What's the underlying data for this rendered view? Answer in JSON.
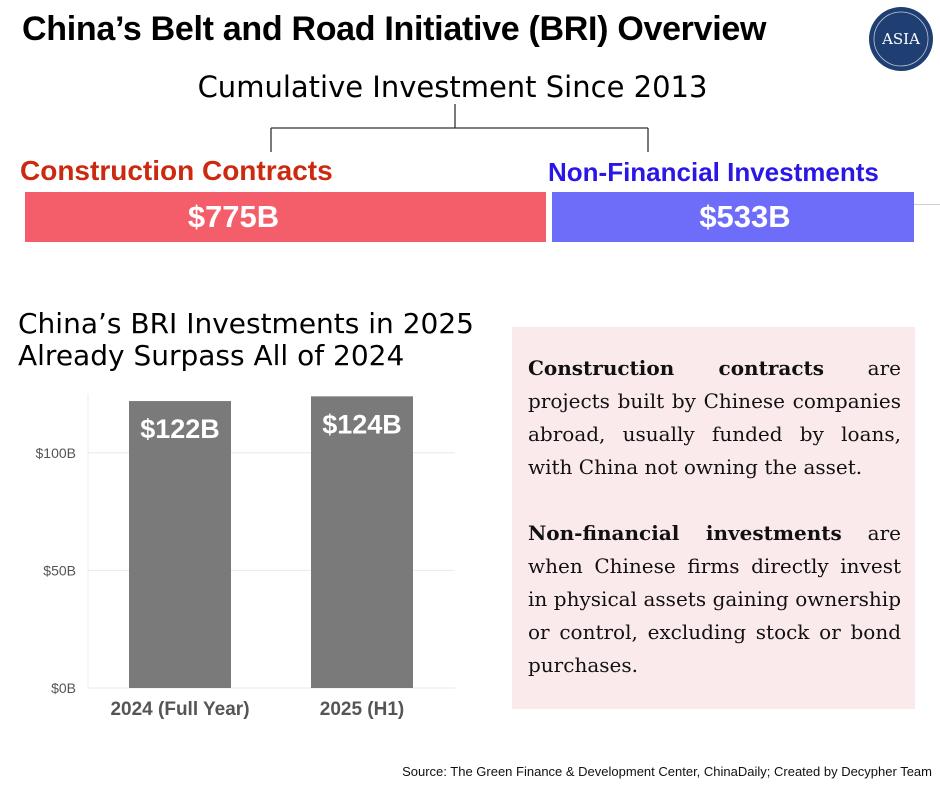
{
  "header": {
    "title": "China’s Belt and Road Initiative (BRI) Overview",
    "logo_text": "ASIA"
  },
  "cumulative": {
    "subtitle": "Cumulative Investment Since 2013",
    "construction": {
      "label": "Construction Contracts",
      "value_label": "$775B",
      "value": 775,
      "color": "#f45e6a",
      "label_color": "#cc2a10"
    },
    "non_financial": {
      "label": "Non-Financial Investments",
      "value_label": "$533B",
      "value": 533,
      "color": "#6d6dfa",
      "label_color": "#2a17e6"
    }
  },
  "bar_section": {
    "title_line1": "China’s BRI Investments in 2025",
    "title_line2": "Already Surpass All of 2024"
  },
  "chart_data": {
    "type": "bar",
    "categories": [
      "2024 (Full Year)",
      "2025 (H1)"
    ],
    "values": [
      122,
      124
    ],
    "data_labels": [
      "$122B",
      "$124B"
    ],
    "ylim": [
      0,
      125
    ],
    "yticks": [
      0,
      50,
      100
    ],
    "ytick_labels": [
      "$0B",
      "$50B",
      "$100B"
    ],
    "title": "China’s BRI Investments in 2025 Already Surpass All of 2024",
    "xlabel": "",
    "ylabel": "",
    "grid": true,
    "bar_color": "#7a7a7a"
  },
  "definitions": {
    "construction_term": "Construction contracts",
    "construction_text": " are projects built by Chinese companies abroad, usually funded by loans, with China not owning the asset.",
    "nonfin_term": "Non-financial investments",
    "nonfin_text": " are when Chinese firms directly invest in physical assets gaining ownership or control, excluding stock or bond purchases."
  },
  "footer": {
    "source": "Source: The Green Finance & Development Center, ChinaDaily; Created by Decypher Team"
  }
}
